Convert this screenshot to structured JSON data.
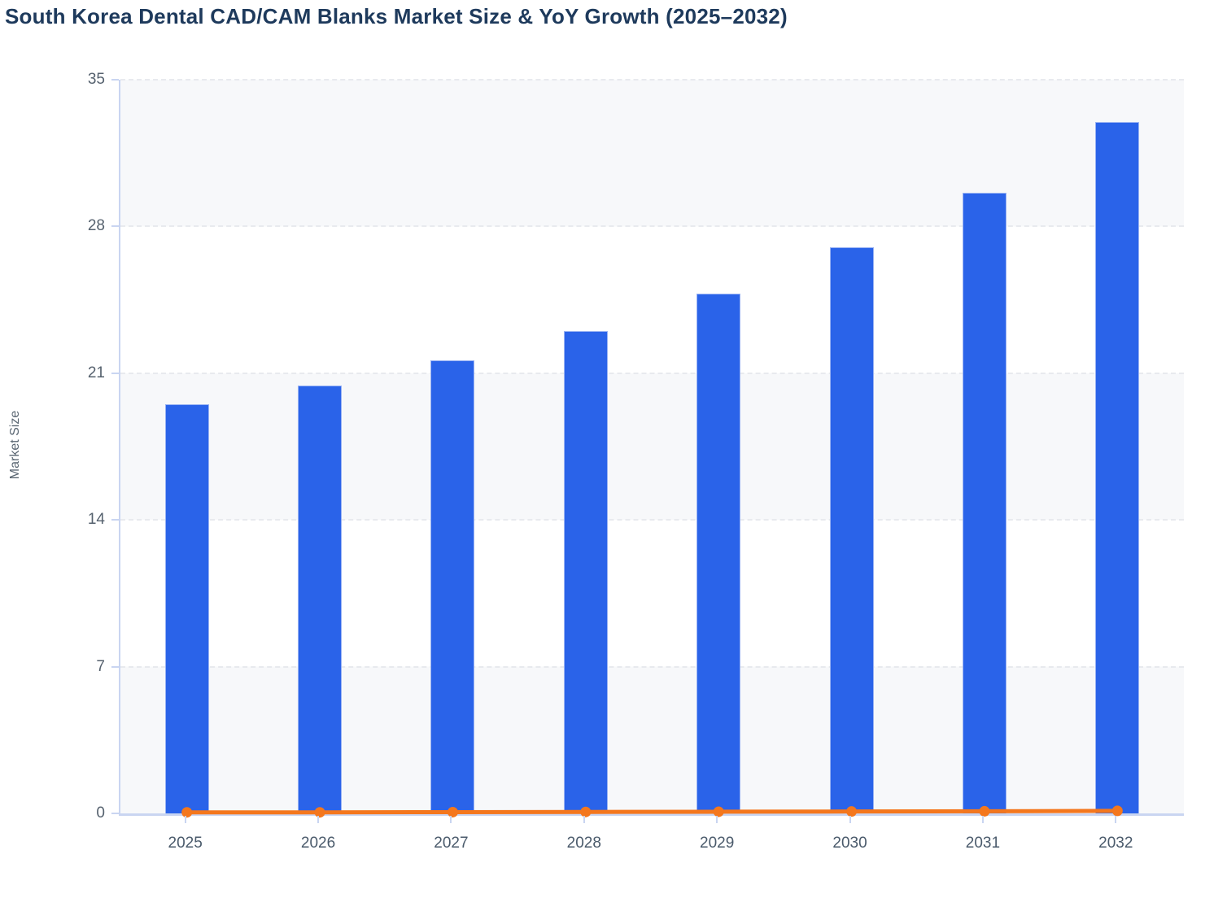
{
  "title": "South Korea Dental CAD/CAM Blanks Market Size & YoY Growth (2025–2032)",
  "colors": {
    "bar": "#2a63e9",
    "bar_stroke": "#9ab3f3",
    "line": "#f4771d",
    "axis": "#c9d5f1",
    "title_text": "#1e3a5c",
    "tick_text": "#55616e"
  },
  "chart_data": {
    "type": "bar",
    "title": "South Korea Dental CAD/CAM Blanks Market Size & YoY Growth (2025–2032)",
    "xlabel": "",
    "ylabel": "Market Size",
    "categories": [
      "2025",
      "2026",
      "2027",
      "2028",
      "2029",
      "2030",
      "2031",
      "2032"
    ],
    "series": [
      {
        "name": "Market Size",
        "type": "bar",
        "color": "#2a63e9",
        "values": [
          19.5,
          20.4,
          21.6,
          23.0,
          24.8,
          27.0,
          29.6,
          33.0
        ]
      },
      {
        "name": "YoY Growth",
        "type": "line",
        "color": "#f4771d",
        "values": [
          0.05,
          0.05,
          0.06,
          0.07,
          0.08,
          0.09,
          0.1,
          0.12
        ]
      }
    ],
    "ylim": [
      0,
      35
    ],
    "yticks": [
      0,
      7,
      14,
      21,
      28,
      35
    ],
    "grid": "horizontal dashed",
    "plot_bands": "alternating gray/white between y ticks",
    "legend": "none"
  }
}
